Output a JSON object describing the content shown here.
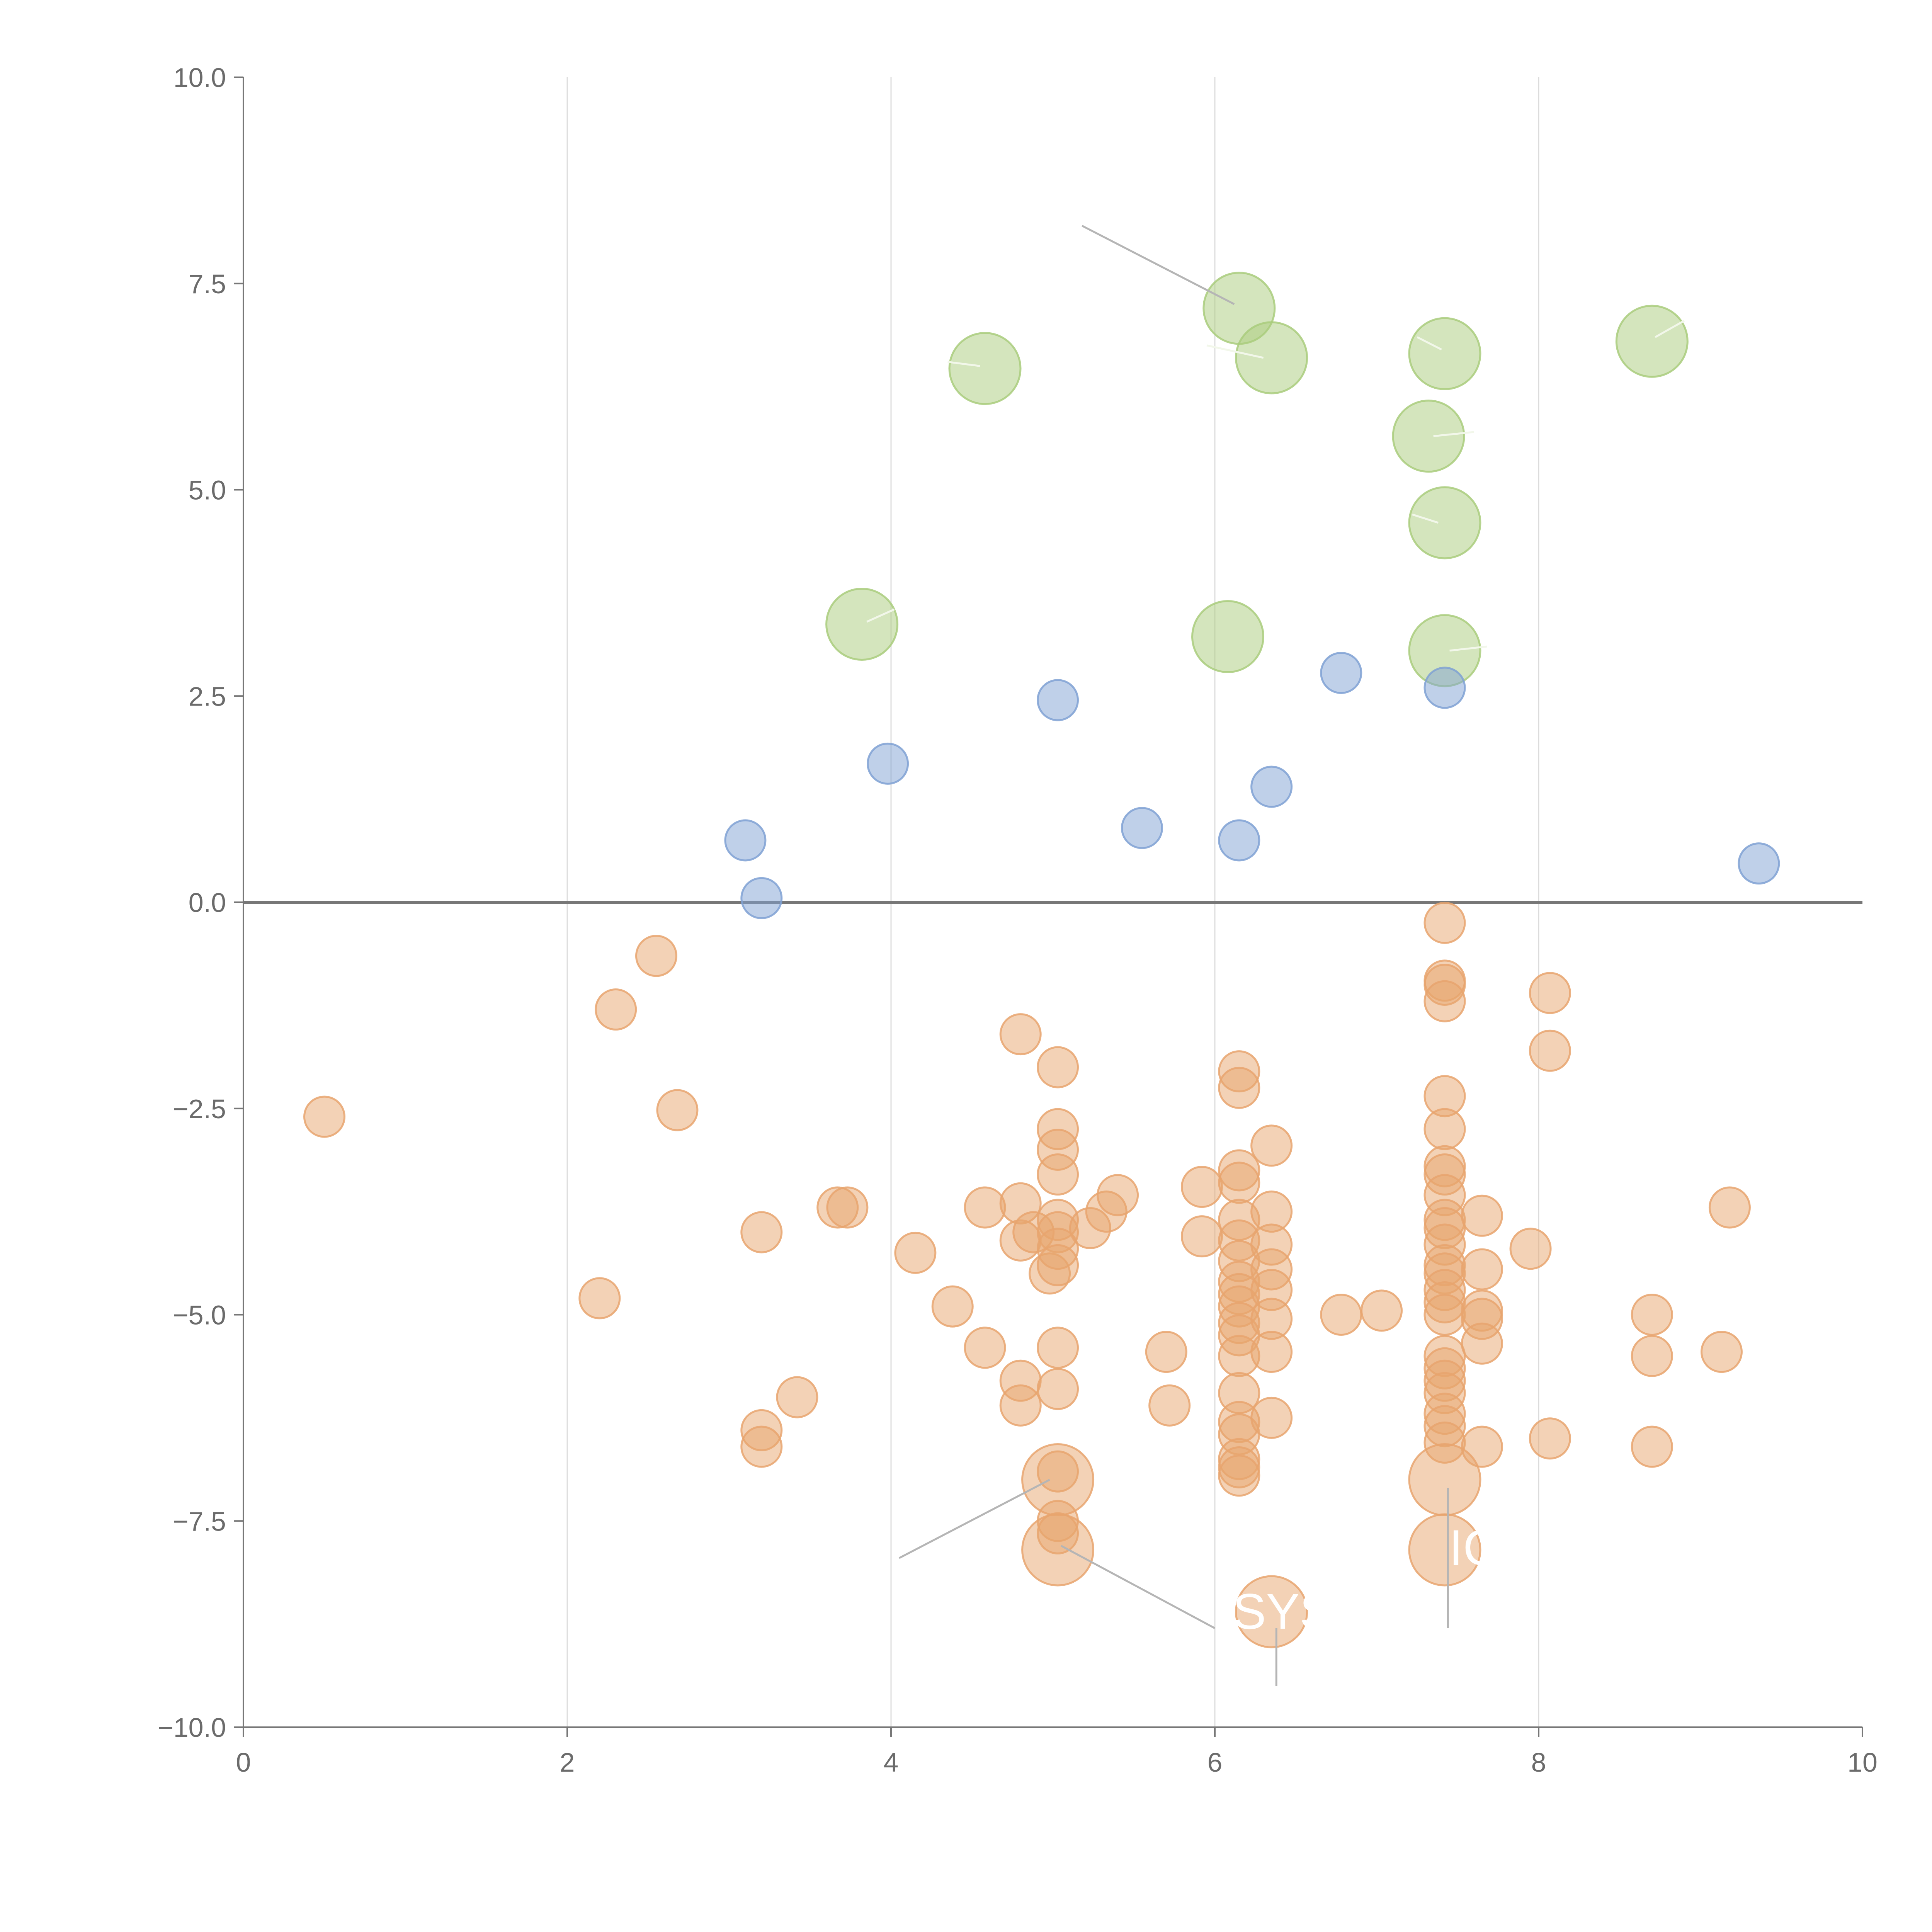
{
  "chart_data": {
    "type": "scatter",
    "title": "",
    "xlabel": "",
    "ylabel": "",
    "xlim": [
      0,
      10
    ],
    "ylim": [
      -10,
      10
    ],
    "x_ticks": [
      "0",
      "2",
      "4",
      "6",
      "8",
      "10"
    ],
    "y_ticks": [
      "−10.0",
      "−7.5",
      "−5.0",
      "−2.5",
      "0.0",
      "2.5",
      "5.0",
      "7.5",
      "10.0"
    ],
    "grid": "vertical",
    "reference_line_y": 0,
    "series": [
      {
        "name": "green",
        "color": "#a9cc7c",
        "points": [
          [
            6.15,
            7.2,
            2
          ],
          [
            6.35,
            6.6,
            2
          ],
          [
            4.58,
            6.47,
            2
          ],
          [
            7.42,
            6.65,
            2
          ],
          [
            8.7,
            6.8,
            2
          ],
          [
            7.32,
            5.65,
            2
          ],
          [
            7.42,
            4.6,
            2
          ],
          [
            3.82,
            3.37,
            2
          ],
          [
            6.08,
            3.22,
            2
          ],
          [
            7.42,
            3.05,
            2
          ]
        ]
      },
      {
        "name": "blue",
        "color": "#7fa1d4",
        "points": [
          [
            5.03,
            2.45,
            1
          ],
          [
            6.78,
            2.78,
            1
          ],
          [
            7.42,
            2.6,
            1
          ],
          [
            3.98,
            1.68,
            1
          ],
          [
            6.35,
            1.4,
            1
          ],
          [
            5.55,
            0.9,
            1
          ],
          [
            3.1,
            0.75,
            1
          ],
          [
            6.15,
            0.75,
            1
          ],
          [
            3.2,
            0.05,
            1
          ],
          [
            9.36,
            0.47,
            1
          ]
        ]
      },
      {
        "name": "orange",
        "color": "#e8a56e",
        "points": [
          [
            0.5,
            -2.6,
            1
          ],
          [
            2.2,
            -4.8,
            1
          ],
          [
            2.3,
            -1.3,
            1
          ],
          [
            2.55,
            -0.65,
            1
          ],
          [
            2.68,
            -2.52,
            1
          ],
          [
            3.2,
            -4.0,
            1
          ],
          [
            3.2,
            -6.4,
            1
          ],
          [
            3.2,
            -6.6,
            1
          ],
          [
            3.42,
            -6.0,
            1
          ],
          [
            3.67,
            -3.7,
            1
          ],
          [
            3.73,
            -3.7,
            1
          ],
          [
            4.15,
            -4.25,
            1
          ],
          [
            4.38,
            -4.9,
            1
          ],
          [
            4.58,
            -3.7,
            1
          ],
          [
            4.58,
            -5.4,
            1
          ],
          [
            4.8,
            -1.6,
            1
          ],
          [
            4.8,
            -3.65,
            1
          ],
          [
            4.8,
            -4.1,
            1
          ],
          [
            4.8,
            -5.8,
            1
          ],
          [
            4.8,
            -6.1,
            1
          ],
          [
            4.88,
            -4.0,
            1
          ],
          [
            4.98,
            -4.5,
            1
          ],
          [
            5.03,
            -2.0,
            1
          ],
          [
            5.03,
            -2.75,
            1
          ],
          [
            5.03,
            -3.0,
            1
          ],
          [
            5.03,
            -3.3,
            1
          ],
          [
            5.03,
            -3.85,
            1
          ],
          [
            5.03,
            -4.0,
            1
          ],
          [
            5.03,
            -4.2,
            1
          ],
          [
            5.03,
            -4.4,
            1
          ],
          [
            5.03,
            -5.4,
            1
          ],
          [
            5.03,
            -5.9,
            1
          ],
          [
            5.03,
            -6.9,
            1
          ],
          [
            5.03,
            -7.5,
            1
          ],
          [
            5.03,
            -7.65,
            1
          ],
          [
            5.23,
            -3.95,
            1
          ],
          [
            5.33,
            -3.75,
            1
          ],
          [
            5.4,
            -3.55,
            1
          ],
          [
            5.7,
            -5.45,
            1
          ],
          [
            5.72,
            -6.1,
            1
          ],
          [
            5.92,
            -3.45,
            1
          ],
          [
            5.92,
            -4.05,
            1
          ],
          [
            6.15,
            -2.05,
            1
          ],
          [
            6.15,
            -2.25,
            1
          ],
          [
            6.15,
            -3.25,
            1
          ],
          [
            6.15,
            -3.4,
            1
          ],
          [
            6.15,
            -3.85,
            1
          ],
          [
            6.15,
            -4.1,
            1
          ],
          [
            6.15,
            -4.35,
            1
          ],
          [
            6.15,
            -4.6,
            1
          ],
          [
            6.15,
            -4.75,
            1
          ],
          [
            6.15,
            -4.9,
            1
          ],
          [
            6.15,
            -5.1,
            1
          ],
          [
            6.15,
            -5.25,
            1
          ],
          [
            6.15,
            -5.5,
            1
          ],
          [
            6.15,
            -5.95,
            1
          ],
          [
            6.15,
            -6.3,
            1
          ],
          [
            6.15,
            -6.45,
            1
          ],
          [
            6.15,
            -6.75,
            1
          ],
          [
            6.15,
            -6.85,
            1
          ],
          [
            6.15,
            -6.95,
            1
          ],
          [
            6.35,
            -2.95,
            1
          ],
          [
            6.35,
            -3.75,
            1
          ],
          [
            6.35,
            -4.15,
            1
          ],
          [
            6.35,
            -4.45,
            1
          ],
          [
            6.35,
            -4.7,
            1
          ],
          [
            6.35,
            -5.05,
            1
          ],
          [
            6.35,
            -5.45,
            1
          ],
          [
            6.35,
            -6.25,
            1
          ],
          [
            6.78,
            -5.0,
            1
          ],
          [
            7.03,
            -4.95,
            1
          ],
          [
            7.42,
            -0.25,
            1
          ],
          [
            7.42,
            -0.95,
            1
          ],
          [
            7.42,
            -1.0,
            1
          ],
          [
            7.42,
            -1.2,
            1
          ],
          [
            7.42,
            -2.35,
            1
          ],
          [
            7.42,
            -2.75,
            1
          ],
          [
            7.42,
            -3.2,
            1
          ],
          [
            7.42,
            -3.3,
            1
          ],
          [
            7.42,
            -3.55,
            1
          ],
          [
            7.42,
            -3.85,
            1
          ],
          [
            7.42,
            -3.95,
            1
          ],
          [
            7.42,
            -4.15,
            1
          ],
          [
            7.42,
            -4.4,
            1
          ],
          [
            7.42,
            -4.5,
            1
          ],
          [
            7.42,
            -4.7,
            1
          ],
          [
            7.42,
            -4.85,
            1
          ],
          [
            7.42,
            -5.0,
            1
          ],
          [
            7.42,
            -5.5,
            1
          ],
          [
            7.42,
            -5.65,
            1
          ],
          [
            7.42,
            -5.8,
            1
          ],
          [
            7.42,
            -5.95,
            1
          ],
          [
            7.42,
            -6.2,
            1
          ],
          [
            7.42,
            -6.35,
            1
          ],
          [
            7.42,
            -6.55,
            1
          ],
          [
            7.65,
            -3.8,
            1
          ],
          [
            7.65,
            -4.45,
            1
          ],
          [
            7.65,
            -4.95,
            1
          ],
          [
            7.65,
            -5.05,
            1
          ],
          [
            7.65,
            -5.35,
            1
          ],
          [
            7.65,
            -6.6,
            1
          ],
          [
            7.95,
            -4.2,
            1
          ],
          [
            8.07,
            -1.1,
            1
          ],
          [
            8.07,
            -1.8,
            1
          ],
          [
            8.07,
            -6.5,
            1
          ],
          [
            8.7,
            -5.0,
            1
          ],
          [
            8.7,
            -5.5,
            1
          ],
          [
            8.7,
            -6.6,
            1
          ],
          [
            9.13,
            -5.45,
            1
          ],
          [
            9.18,
            -3.7,
            1
          ],
          [
            5.03,
            -7.0,
            2
          ],
          [
            5.03,
            -7.85,
            2
          ],
          [
            7.42,
            -7.0,
            2
          ],
          [
            7.42,
            -7.85,
            2
          ],
          [
            6.35,
            -8.6,
            2
          ]
        ]
      }
    ],
    "annotations": [
      {
        "text": "SYS"
      },
      {
        "text": "IC"
      }
    ]
  }
}
